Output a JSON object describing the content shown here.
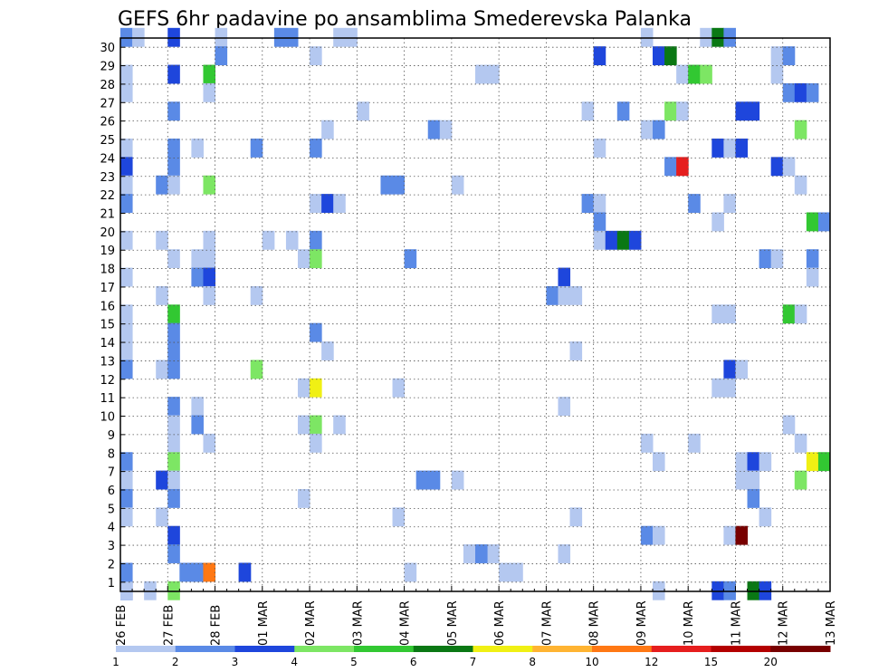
{
  "chart_data": {
    "type": "heatmap",
    "title": "GEFS 6hr padavine po ansamblima Smederevska Palanka",
    "xlabel": "",
    "ylabel": "",
    "x_tick_labels": [
      "26 FEB",
      "27 FEB",
      "28 FEB",
      "01 MAR",
      "02 MAR",
      "03 MAR",
      "04 MAR",
      "05 MAR",
      "06 MAR",
      "07 MAR",
      "08 MAR",
      "09 MAR",
      "10 MAR",
      "11 MAR",
      "12 MAR",
      "13 MAR"
    ],
    "y_tick_labels": [
      "1",
      "2",
      "3",
      "4",
      "5",
      "6",
      "7",
      "8",
      "9",
      "10",
      "11",
      "12",
      "13",
      "14",
      "15",
      "16",
      "17",
      "18",
      "19",
      "20",
      "21",
      "22",
      "23",
      "24",
      "25",
      "26",
      "27",
      "28",
      "29",
      "30"
    ],
    "time_step_hours": 6,
    "members": 30,
    "grid": true,
    "colorbar": {
      "position": "bottom",
      "labels": [
        "1",
        "2",
        "3",
        "4",
        "5",
        "6",
        "7",
        "8",
        "10",
        "12",
        "15",
        "20"
      ],
      "colors": [
        "#b4c8f0",
        "#5a8ae6",
        "#1e46dc",
        "#7de664",
        "#32c832",
        "#0a7814",
        "#f0f014",
        "#ffb432",
        "#ff7814",
        "#e61e1e",
        "#b40000",
        "#780000"
      ]
    },
    "cells": [
      [
        0,
        0,
        2
      ],
      [
        0,
        0,
        2
      ],
      [
        2,
        0,
        1
      ],
      [
        10,
        1,
        2
      ],
      [
        10,
        1,
        3
      ],
      [
        5,
        1,
        2
      ],
      [
        6,
        1,
        2
      ],
      [
        7,
        1,
        1
      ],
      [
        31,
        2,
        1
      ],
      [
        32,
        1,
        1
      ],
      [
        33,
        1,
        1
      ],
      [
        0,
        0,
        1
      ],
      [
        0,
        0,
        1
      ],
      [
        0,
        30,
        2
      ],
      [
        1,
        30,
        1
      ],
      [
        4,
        30,
        3
      ],
      [
        8,
        30,
        1
      ],
      [
        13,
        30,
        2
      ],
      [
        14,
        30,
        2
      ],
      [
        18,
        30,
        1
      ],
      [
        19,
        30,
        1
      ],
      [
        44,
        30,
        1
      ],
      [
        49,
        30,
        1
      ],
      [
        50,
        30,
        6
      ],
      [
        51,
        30,
        2
      ],
      [
        8,
        29,
        2
      ],
      [
        16,
        29,
        1
      ],
      [
        40,
        29,
        3
      ],
      [
        45,
        29,
        3
      ],
      [
        46,
        29,
        6
      ],
      [
        55,
        29,
        1
      ],
      [
        56,
        29,
        2
      ],
      [
        0,
        28,
        1
      ],
      [
        4,
        28,
        3
      ],
      [
        7,
        28,
        5
      ],
      [
        30,
        28,
        1
      ],
      [
        31,
        28,
        1
      ],
      [
        47,
        28,
        1
      ],
      [
        48,
        28,
        5
      ],
      [
        49,
        28,
        4
      ],
      [
        55,
        28,
        1
      ],
      [
        0,
        27,
        1
      ],
      [
        7,
        27,
        1
      ],
      [
        56,
        27,
        2
      ],
      [
        57,
        27,
        3
      ],
      [
        58,
        27,
        2
      ],
      [
        4,
        26,
        2
      ],
      [
        20,
        26,
        1
      ],
      [
        39,
        26,
        1
      ],
      [
        42,
        26,
        2
      ],
      [
        46,
        26,
        4
      ],
      [
        47,
        26,
        1
      ],
      [
        52,
        26,
        3
      ],
      [
        53,
        26,
        3
      ],
      [
        17,
        25,
        1
      ],
      [
        26,
        25,
        2
      ],
      [
        27,
        25,
        1
      ],
      [
        44,
        25,
        1
      ],
      [
        45,
        25,
        2
      ],
      [
        57,
        25,
        4
      ],
      [
        0,
        24,
        1
      ],
      [
        4,
        24,
        2
      ],
      [
        6,
        24,
        1
      ],
      [
        11,
        24,
        2
      ],
      [
        16,
        24,
        2
      ],
      [
        40,
        24,
        1
      ],
      [
        50,
        24,
        3
      ],
      [
        51,
        24,
        1
      ],
      [
        52,
        24,
        3
      ],
      [
        0,
        23,
        3
      ],
      [
        4,
        23,
        2
      ],
      [
        46,
        23,
        2
      ],
      [
        47,
        23,
        10
      ],
      [
        55,
        23,
        3
      ],
      [
        56,
        23,
        1
      ],
      [
        0,
        22,
        1
      ],
      [
        3,
        22,
        2
      ],
      [
        4,
        22,
        1
      ],
      [
        7,
        22,
        4
      ],
      [
        22,
        22,
        2
      ],
      [
        23,
        22,
        2
      ],
      [
        28,
        22,
        1
      ],
      [
        57,
        22,
        1
      ],
      [
        0,
        21,
        2
      ],
      [
        16,
        21,
        1
      ],
      [
        17,
        21,
        3
      ],
      [
        18,
        21,
        1
      ],
      [
        39,
        21,
        2
      ],
      [
        40,
        21,
        1
      ],
      [
        48,
        21,
        2
      ],
      [
        51,
        21,
        1
      ],
      [
        40,
        20,
        2
      ],
      [
        50,
        20,
        1
      ],
      [
        58,
        20,
        5
      ],
      [
        59,
        20,
        2
      ],
      [
        0,
        19,
        1
      ],
      [
        3,
        19,
        1
      ],
      [
        7,
        19,
        1
      ],
      [
        12,
        19,
        1
      ],
      [
        14,
        19,
        1
      ],
      [
        16,
        19,
        2
      ],
      [
        40,
        19,
        1
      ],
      [
        41,
        19,
        3
      ],
      [
        42,
        19,
        6
      ],
      [
        43,
        19,
        3
      ],
      [
        4,
        18,
        1
      ],
      [
        6,
        18,
        1
      ],
      [
        7,
        18,
        1
      ],
      [
        15,
        18,
        1
      ],
      [
        16,
        18,
        4
      ],
      [
        24,
        18,
        2
      ],
      [
        54,
        18,
        2
      ],
      [
        55,
        18,
        1
      ],
      [
        58,
        18,
        2
      ],
      [
        0,
        17,
        1
      ],
      [
        6,
        17,
        2
      ],
      [
        7,
        17,
        3
      ],
      [
        37,
        17,
        3
      ],
      [
        58,
        17,
        1
      ],
      [
        3,
        16,
        1
      ],
      [
        7,
        16,
        1
      ],
      [
        11,
        16,
        1
      ],
      [
        36,
        16,
        2
      ],
      [
        37,
        16,
        1
      ],
      [
        38,
        16,
        1
      ],
      [
        0,
        15,
        1
      ],
      [
        4,
        15,
        5
      ],
      [
        50,
        15,
        1
      ],
      [
        51,
        15,
        1
      ],
      [
        56,
        15,
        5
      ],
      [
        57,
        15,
        1
      ],
      [
        0,
        14,
        1
      ],
      [
        4,
        14,
        2
      ],
      [
        16,
        14,
        2
      ],
      [
        0,
        13,
        1
      ],
      [
        4,
        13,
        2
      ],
      [
        17,
        13,
        1
      ],
      [
        38,
        13,
        1
      ],
      [
        0,
        12,
        2
      ],
      [
        3,
        12,
        1
      ],
      [
        4,
        12,
        2
      ],
      [
        11,
        12,
        4
      ],
      [
        51,
        12,
        3
      ],
      [
        52,
        12,
        1
      ],
      [
        15,
        11,
        1
      ],
      [
        16,
        11,
        7
      ],
      [
        23,
        11,
        1
      ],
      [
        50,
        11,
        1
      ],
      [
        51,
        11,
        1
      ],
      [
        4,
        10,
        2
      ],
      [
        6,
        10,
        1
      ],
      [
        37,
        10,
        1
      ],
      [
        4,
        9,
        1
      ],
      [
        6,
        9,
        2
      ],
      [
        15,
        9,
        1
      ],
      [
        16,
        9,
        4
      ],
      [
        18,
        9,
        1
      ],
      [
        56,
        9,
        1
      ],
      [
        4,
        8,
        1
      ],
      [
        7,
        8,
        1
      ],
      [
        16,
        8,
        1
      ],
      [
        44,
        8,
        1
      ],
      [
        48,
        8,
        1
      ],
      [
        57,
        8,
        1
      ],
      [
        0,
        7,
        2
      ],
      [
        4,
        7,
        4
      ],
      [
        45,
        7,
        1
      ],
      [
        52,
        7,
        1
      ],
      [
        53,
        7,
        3
      ],
      [
        54,
        7,
        1
      ],
      [
        58,
        7,
        7
      ],
      [
        59,
        7,
        5
      ],
      [
        0,
        6,
        1
      ],
      [
        3,
        6,
        3
      ],
      [
        4,
        6,
        1
      ],
      [
        25,
        6,
        2
      ],
      [
        26,
        6,
        2
      ],
      [
        28,
        6,
        1
      ],
      [
        52,
        6,
        1
      ],
      [
        53,
        6,
        1
      ],
      [
        57,
        6,
        4
      ],
      [
        0,
        5,
        2
      ],
      [
        4,
        5,
        2
      ],
      [
        15,
        5,
        1
      ],
      [
        53,
        5,
        2
      ],
      [
        0,
        4,
        1
      ],
      [
        3,
        4,
        1
      ],
      [
        23,
        4,
        1
      ],
      [
        38,
        4,
        1
      ],
      [
        54,
        4,
        1
      ],
      [
        4,
        3,
        3
      ],
      [
        44,
        3,
        2
      ],
      [
        45,
        3,
        1
      ],
      [
        51,
        3,
        1
      ],
      [
        52,
        3,
        12
      ],
      [
        4,
        2,
        2
      ],
      [
        29,
        2,
        1
      ],
      [
        30,
        2,
        2
      ],
      [
        37,
        2,
        1
      ],
      [
        0,
        1,
        2
      ],
      [
        6,
        1,
        2
      ],
      [
        7,
        1,
        9
      ],
      [
        24,
        1,
        1
      ],
      [
        4,
        0,
        4
      ],
      [
        45,
        0,
        1
      ],
      [
        50,
        0,
        3
      ],
      [
        51,
        0,
        2
      ],
      [
        53,
        0,
        6
      ],
      [
        54,
        0,
        3
      ]
    ]
  }
}
